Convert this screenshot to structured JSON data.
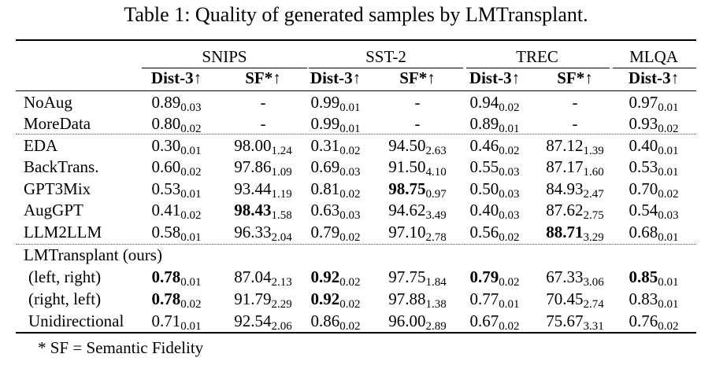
{
  "caption": "Table 1: Quality of generated samples by LMTransplant.",
  "groups": [
    "SNIPS",
    "SST-2",
    "TREC",
    "MLQA"
  ],
  "metrics": [
    "Dist-3↑",
    "SF*↑",
    "Dist-3↑",
    "SF*↑",
    "Dist-3↑",
    "SF*↑",
    "Dist-3↑"
  ],
  "rows": [
    {
      "label": "NoAug",
      "cells": [
        [
          "0.89",
          "0.03",
          false
        ],
        [
          "-",
          "",
          false
        ],
        [
          "0.99",
          "0.01",
          false
        ],
        [
          "-",
          "",
          false
        ],
        [
          "0.94",
          "0.02",
          false
        ],
        [
          "-",
          "",
          false
        ],
        [
          "0.97",
          "0.01",
          false
        ]
      ]
    },
    {
      "label": "MoreData",
      "cells": [
        [
          "0.80",
          "0.02",
          false
        ],
        [
          "-",
          "",
          false
        ],
        [
          "0.99",
          "0.01",
          false
        ],
        [
          "-",
          "",
          false
        ],
        [
          "0.89",
          "0.01",
          false
        ],
        [
          "-",
          "",
          false
        ],
        [
          "0.93",
          "0.02",
          false
        ]
      ]
    },
    {
      "label": "EDA",
      "cells": [
        [
          "0.30",
          "0.01",
          false
        ],
        [
          "98.00",
          "1.24",
          false
        ],
        [
          "0.31",
          "0.02",
          false
        ],
        [
          "94.50",
          "2.63",
          false
        ],
        [
          "0.46",
          "0.02",
          false
        ],
        [
          "87.12",
          "1.39",
          false
        ],
        [
          "0.40",
          "0.01",
          false
        ]
      ]
    },
    {
      "label": "BackTrans.",
      "cells": [
        [
          "0.60",
          "0.02",
          false
        ],
        [
          "97.86",
          "1.09",
          false
        ],
        [
          "0.69",
          "0.03",
          false
        ],
        [
          "91.50",
          "4.10",
          false
        ],
        [
          "0.55",
          "0.03",
          false
        ],
        [
          "87.17",
          "1.60",
          false
        ],
        [
          "0.53",
          "0.01",
          false
        ]
      ]
    },
    {
      "label": "GPT3Mix",
      "cells": [
        [
          "0.53",
          "0.01",
          false
        ],
        [
          "93.44",
          "1.19",
          false
        ],
        [
          "0.81",
          "0.02",
          false
        ],
        [
          "98.75",
          "0.97",
          true
        ],
        [
          "0.50",
          "0.03",
          false
        ],
        [
          "84.93",
          "2.47",
          false
        ],
        [
          "0.70",
          "0.02",
          false
        ]
      ]
    },
    {
      "label": "AugGPT",
      "cells": [
        [
          "0.41",
          "0.02",
          false
        ],
        [
          "98.43",
          "1.58",
          true
        ],
        [
          "0.63",
          "0.03",
          false
        ],
        [
          "94.62",
          "3.49",
          false
        ],
        [
          "0.40",
          "0.03",
          false
        ],
        [
          "87.62",
          "2.75",
          false
        ],
        [
          "0.54",
          "0.03",
          false
        ]
      ]
    },
    {
      "label": "LLM2LLM",
      "cells": [
        [
          "0.58",
          "0.01",
          false
        ],
        [
          "96.33",
          "2.04",
          false
        ],
        [
          "0.79",
          "0.02",
          false
        ],
        [
          "97.10",
          "2.78",
          false
        ],
        [
          "0.56",
          "0.02",
          false
        ],
        [
          "88.71",
          "3.29",
          true
        ],
        [
          "0.68",
          "0.01",
          false
        ]
      ]
    },
    {
      "label": "LMTransplant (ours)",
      "cells": []
    },
    {
      "label": "(left, right)",
      "cells": [
        [
          "0.78",
          "0.01",
          true
        ],
        [
          "87.04",
          "2.13",
          false
        ],
        [
          "0.92",
          "0.02",
          true
        ],
        [
          "97.75",
          "1.84",
          false
        ],
        [
          "0.79",
          "0.02",
          true
        ],
        [
          "67.33",
          "3.06",
          false
        ],
        [
          "0.85",
          "0.01",
          true
        ]
      ]
    },
    {
      "label": "(right, left)",
      "cells": [
        [
          "0.78",
          "0.02",
          true
        ],
        [
          "91.79",
          "2.29",
          false
        ],
        [
          "0.92",
          "0.02",
          true
        ],
        [
          "97.88",
          "1.38",
          false
        ],
        [
          "0.77",
          "0.01",
          false
        ],
        [
          "70.45",
          "2.74",
          false
        ],
        [
          "0.83",
          "0.01",
          false
        ]
      ]
    },
    {
      "label": "Unidirectional",
      "cells": [
        [
          "0.71",
          "0.01",
          false
        ],
        [
          "92.54",
          "2.06",
          false
        ],
        [
          "0.86",
          "0.02",
          false
        ],
        [
          "96.00",
          "2.89",
          false
        ],
        [
          "0.67",
          "0.02",
          false
        ],
        [
          "75.67",
          "3.31",
          false
        ],
        [
          "0.76",
          "0.02",
          false
        ]
      ]
    }
  ],
  "footnote": "* SF = Semantic Fidelity"
}
